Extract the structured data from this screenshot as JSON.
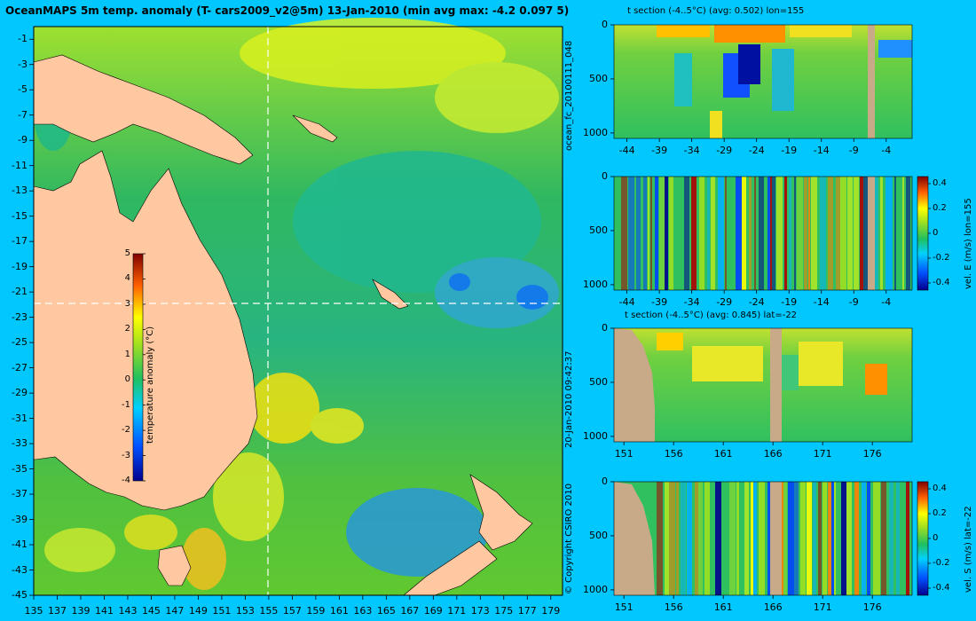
{
  "map": {
    "title": "OceanMAPS 5m temp. anomaly (T- cars2009_v2@5m) 13-Jan-2010 (min avg max: -4.2 0.097 5)",
    "lon_ticks": [
      "135",
      "137",
      "139",
      "141",
      "143",
      "145",
      "147",
      "149",
      "151",
      "153",
      "155",
      "157",
      "159",
      "161",
      "163",
      "165",
      "167",
      "169",
      "171",
      "173",
      "175",
      "177",
      "179"
    ],
    "lat_ticks": [
      "-1",
      "-3",
      "-5",
      "-7",
      "-9",
      "-11",
      "-13",
      "-15",
      "-17",
      "-19",
      "-21",
      "-23",
      "-25",
      "-27",
      "-29",
      "-31",
      "-33",
      "-35",
      "-37",
      "-39",
      "-41",
      "-43",
      "-45"
    ],
    "colorbar": {
      "label": "temperature anomaly (°C)",
      "ticks": [
        "5",
        "4",
        "3",
        "2",
        "1",
        "0",
        "-1",
        "-2",
        "-3",
        "-4"
      ]
    }
  },
  "side_labels": {
    "run_id": "ocean_fc_20100111_048",
    "timestamp": "20-Jan-2010 09:42:37",
    "copyright": "© Copyright CSIRO 2010"
  },
  "panels": [
    {
      "title": "t section (-4..5°C) (avg: 0.502) lon=155",
      "x_ticks": [
        "-44",
        "-39",
        "-34",
        "-29",
        "-24",
        "-19",
        "-14",
        "-9",
        "-4"
      ],
      "y_ticks": [
        "0",
        "500",
        "1000"
      ]
    },
    {
      "title": "",
      "x_ticks": [
        "-44",
        "-39",
        "-34",
        "-29",
        "-24",
        "-19",
        "-14",
        "-9",
        "-4"
      ],
      "y_ticks": [
        "0",
        "500",
        "1000"
      ],
      "colorbar": {
        "label": "vel. E (m/s) lon=155",
        "ticks": [
          "0.4",
          "0.2",
          "0",
          "-0.2",
          "-0.4"
        ]
      }
    },
    {
      "title": "t section (-4..5°C) (avg: 0.845) lat=-22",
      "x_ticks": [
        "151",
        "156",
        "161",
        "166",
        "171",
        "176"
      ],
      "y_ticks": [
        "0",
        "500",
        "1000"
      ]
    },
    {
      "title": "",
      "x_ticks": [
        "151",
        "156",
        "161",
        "166",
        "171",
        "176"
      ],
      "y_ticks": [
        "0",
        "500",
        "1000"
      ],
      "colorbar": {
        "label": "vel. S (m/s) lat=-22",
        "ticks": [
          "0.4",
          "0.2",
          "0",
          "-0.2",
          "-0.4"
        ]
      }
    }
  ],
  "chart_data": [
    {
      "type": "heatmap",
      "title": "OceanMAPS 5m temp. anomaly (T- cars2009_v2@5m) 13-Jan-2010 (min avg max: -4.2 0.097 5)",
      "xlim": [
        135,
        180
      ],
      "ylim": [
        -45,
        0
      ],
      "colorbar_range": [
        -4,
        5
      ],
      "colorbar_label": "temperature anomaly (°C)",
      "section_lines": {
        "lon": 155,
        "lat": -22
      },
      "stats": {
        "min": -4.2,
        "avg": 0.097,
        "max": 5
      }
    },
    {
      "type": "heatmap",
      "title": "t section (-4..5°C) (avg: 0.502) lon=155",
      "xlim": [
        -46,
        0
      ],
      "ylim": [
        1050,
        0
      ],
      "value_range": [
        -4,
        5
      ],
      "avg": 0.502
    },
    {
      "type": "heatmap",
      "xlim": [
        -46,
        0
      ],
      "ylim": [
        1050,
        0
      ],
      "colorbar_range": [
        -0.4,
        0.4
      ],
      "colorbar_label": "vel. E (m/s) lon=155"
    },
    {
      "type": "heatmap",
      "title": "t section (-4..5°C) (avg: 0.845) lat=-22",
      "xlim": [
        150,
        180
      ],
      "ylim": [
        1050,
        0
      ],
      "value_range": [
        -4,
        5
      ],
      "avg": 0.845
    },
    {
      "type": "heatmap",
      "xlim": [
        150,
        180
      ],
      "ylim": [
        1050,
        0
      ],
      "colorbar_range": [
        -0.4,
        0.4
      ],
      "colorbar_label": "vel. S (m/s) lat=-22"
    }
  ],
  "colors": {
    "background": "#00c8ff",
    "land": "#ffc8a0",
    "section_land": "#c8aa88",
    "ocean_base": "#28b450"
  }
}
